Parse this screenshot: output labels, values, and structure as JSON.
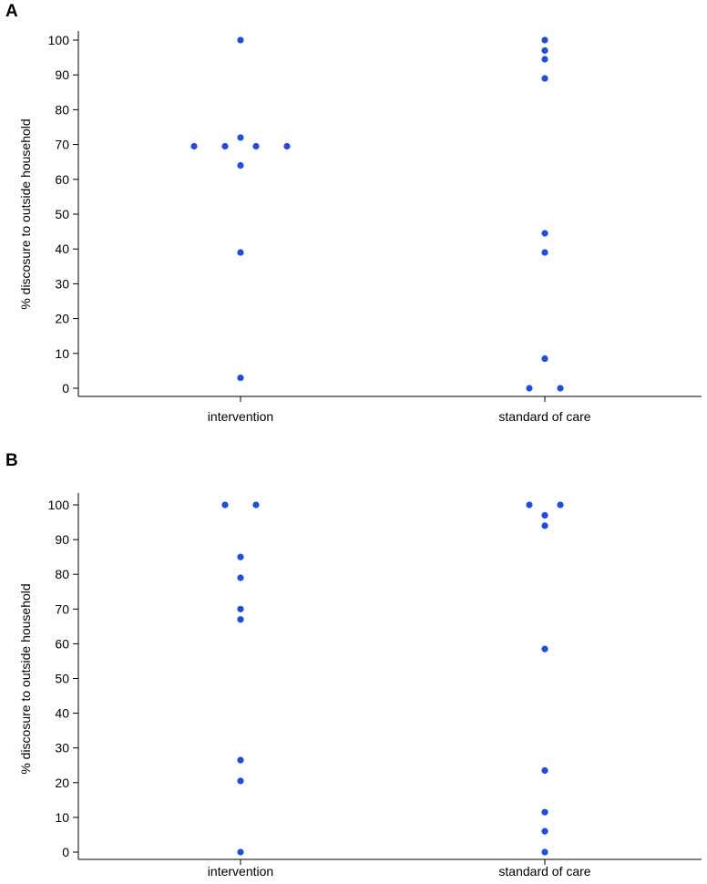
{
  "chart_data": [
    {
      "type": "scatter",
      "panel_label": "A",
      "ylabel": "% discosure to outside household",
      "ylim": [
        0,
        100
      ],
      "yticks": [
        "0",
        "10",
        "20",
        "30",
        "40",
        "50",
        "60",
        "70",
        "80",
        "90",
        "100"
      ],
      "categories": [
        "intervention",
        "standard of care"
      ],
      "series": [
        {
          "name": "intervention",
          "values": [
            100,
            72,
            69.5,
            69.5,
            69.5,
            69.5,
            64,
            39,
            3
          ]
        },
        {
          "name": "standard of care",
          "values": [
            100,
            97,
            94.5,
            89,
            44.5,
            39,
            8.5,
            0,
            0
          ]
        }
      ],
      "point_color": "#1f4be8"
    },
    {
      "type": "scatter",
      "panel_label": "B",
      "ylabel": "% discosure to outside household",
      "ylim": [
        0,
        100
      ],
      "yticks": [
        "0",
        "10",
        "20",
        "30",
        "40",
        "50",
        "60",
        "70",
        "80",
        "90",
        "100"
      ],
      "categories": [
        "intervention",
        "standard of care"
      ],
      "series": [
        {
          "name": "intervention",
          "values": [
            100,
            100,
            85,
            79,
            70,
            67,
            26.5,
            20.5,
            0
          ]
        },
        {
          "name": "standard of care",
          "values": [
            100,
            100,
            97,
            94,
            58.5,
            23.5,
            11.5,
            6,
            0
          ]
        }
      ],
      "point_color": "#1f4be8"
    }
  ]
}
